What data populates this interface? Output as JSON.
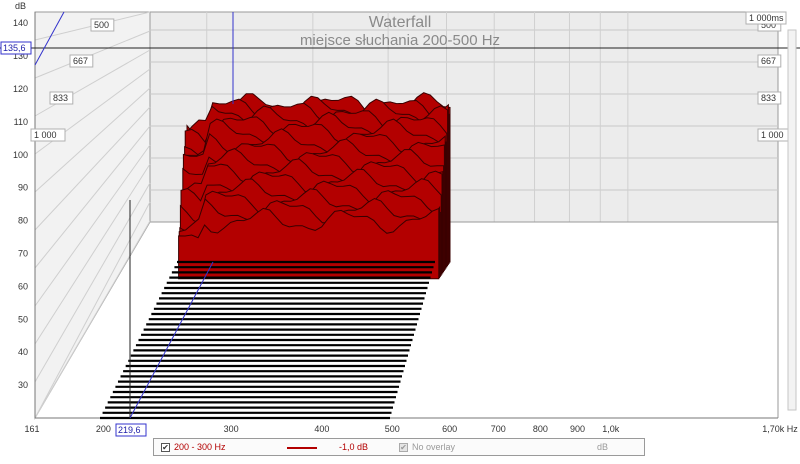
{
  "chart_data": {
    "type": "waterfall",
    "title": "Waterfall",
    "subtitle": "miejsce słuchania 200-500 Hz",
    "ylabel": "dB",
    "ylim": [
      20,
      145
    ],
    "y_ticks": [
      30,
      40,
      50,
      60,
      70,
      80,
      90,
      100,
      110,
      120,
      130,
      140
    ],
    "x_scale": "log",
    "xlim": [
      161,
      1700
    ],
    "x_tick_labels": [
      "161",
      "200",
      "300",
      "400",
      "500",
      "600",
      "700",
      "800",
      "900",
      "1,0k",
      "1,70k Hz"
    ],
    "time_axis_labels": [
      "500",
      "667",
      "833",
      "1 000"
    ],
    "time_axis_end_label": "1 000ms",
    "cursor": {
      "y_label": "135,6",
      "x_label": "219,6"
    },
    "surface_color": "#b30000",
    "slice_count": 31,
    "frequency_range_hz": [
      200,
      500
    ],
    "ridge_peaks_db": [
      118,
      117,
      116,
      114,
      112,
      110,
      107,
      104,
      101,
      98,
      95,
      92,
      89,
      86,
      83
    ]
  },
  "legend": {
    "series_label": "200 - 300 Hz",
    "series_checked": true,
    "series_color": "#b30000",
    "offset_label": "-1,0 dB",
    "overlay_label": "No overlay",
    "overlay_checked": true,
    "unit_label": "dB"
  }
}
